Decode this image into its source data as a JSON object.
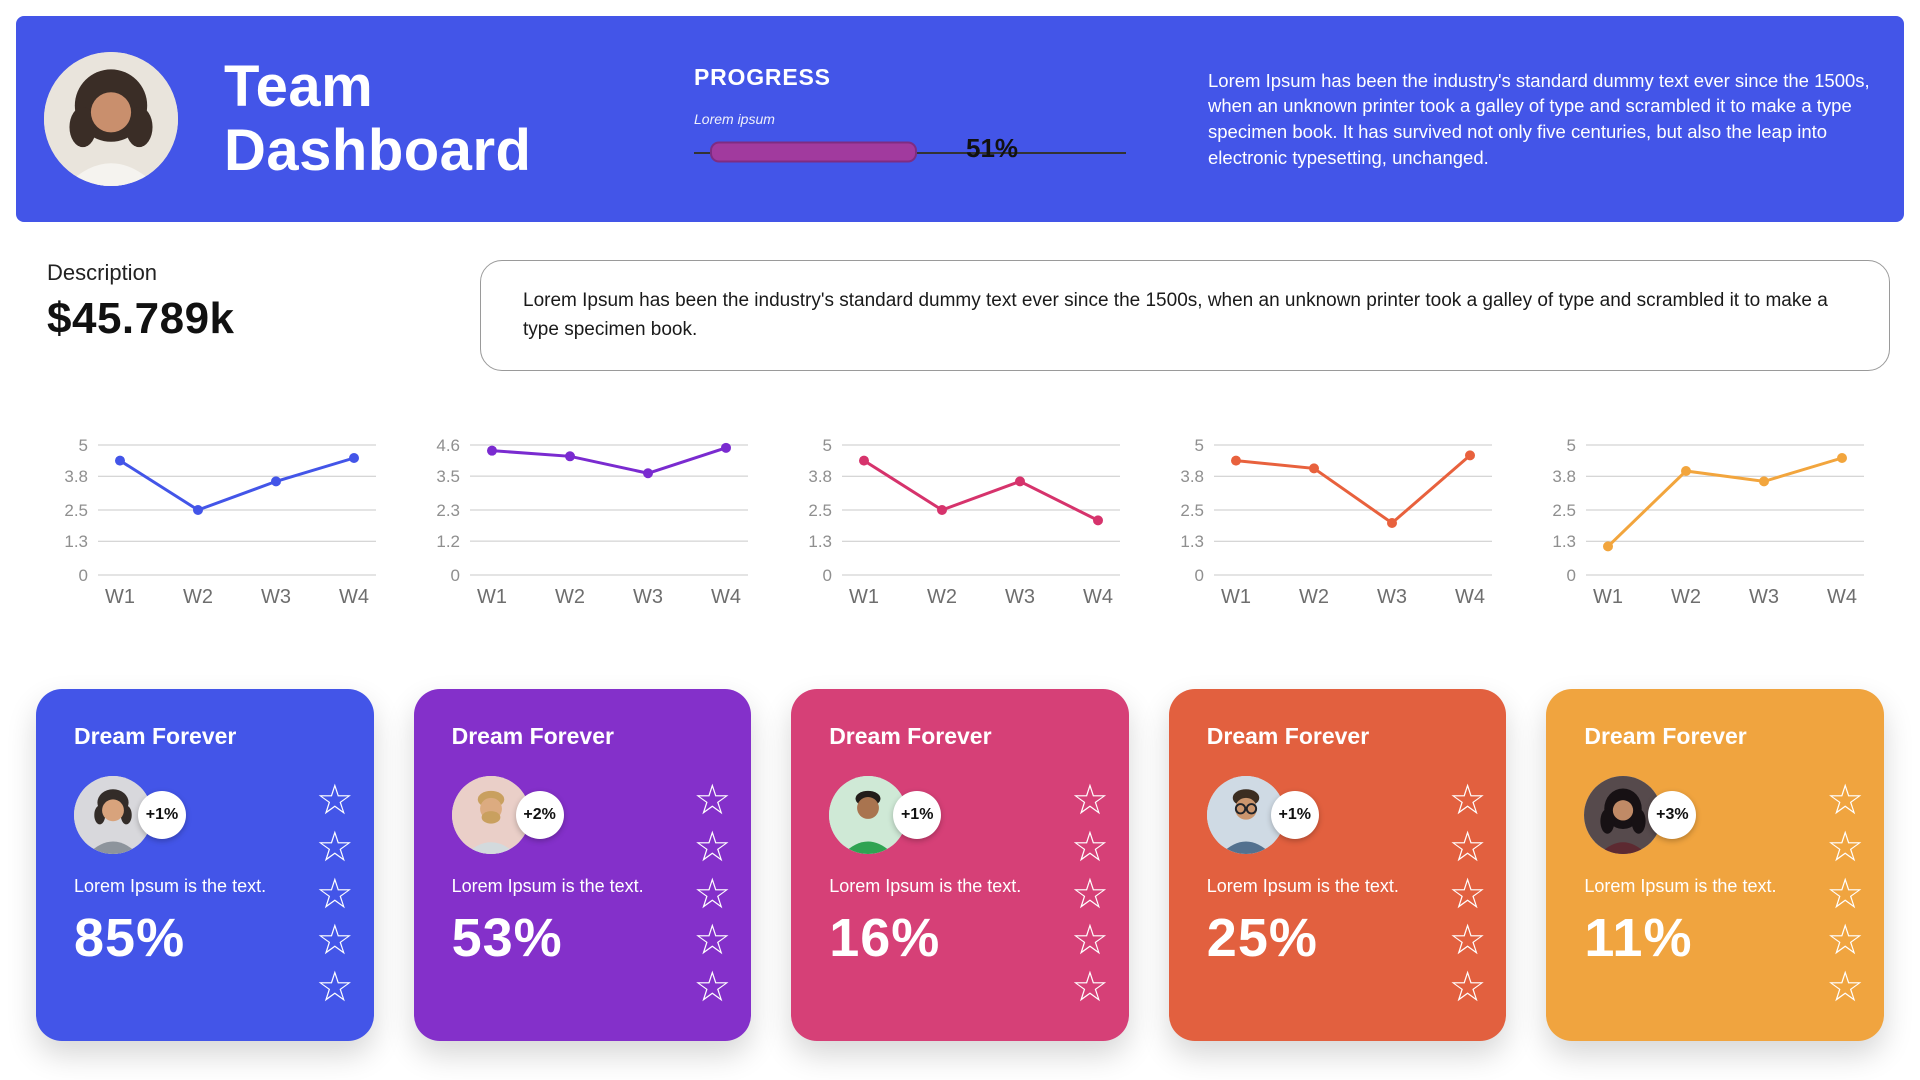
{
  "colors": {
    "header_bg": "#4355e8",
    "progress_fill": "#a13a9e"
  },
  "icons": {
    "star": "☆"
  },
  "header": {
    "title": "Team Dashboard",
    "progress": {
      "label": "PROGRESS",
      "sublabel": "Lorem ipsum",
      "value": "51%",
      "percent": 51
    },
    "paragraph": "Lorem Ipsum has been the industry's standard dummy text ever since the 1500s, when an unknown printer took a galley of type and scrambled it to make a type specimen book. It has survived not only five centuries, but also the leap into electronic typesetting, unchanged."
  },
  "description": {
    "label": "Description",
    "amount": "$45.789k",
    "note": "Lorem Ipsum has been the industry's standard dummy text ever since the 1500s, when an unknown printer took a galley of type and scrambled it to make a type specimen book."
  },
  "chart_data": [
    {
      "type": "line",
      "categories": [
        "W1",
        "W2",
        "W3",
        "W4"
      ],
      "values": [
        4.4,
        2.5,
        3.6,
        4.5
      ],
      "yticks": [
        5,
        3.8,
        2.5,
        1.3,
        0
      ],
      "ylim": [
        0,
        5
      ],
      "grid": true,
      "legend": "none",
      "color": "#4355e8"
    },
    {
      "type": "line",
      "categories": [
        "W1",
        "W2",
        "W3",
        "W4"
      ],
      "values": [
        4.4,
        4.2,
        3.6,
        4.5
      ],
      "yticks": [
        4.6,
        3.5,
        2.3,
        1.2,
        0
      ],
      "ylim": [
        0,
        4.6
      ],
      "grid": true,
      "legend": "none",
      "color": "#7a2bd0"
    },
    {
      "type": "line",
      "categories": [
        "W1",
        "W2",
        "W3",
        "W4"
      ],
      "values": [
        4.4,
        2.5,
        3.6,
        2.1
      ],
      "yticks": [
        5,
        3.8,
        2.5,
        1.3,
        0
      ],
      "ylim": [
        0,
        5
      ],
      "grid": true,
      "legend": "none",
      "color": "#d6336c"
    },
    {
      "type": "line",
      "categories": [
        "W1",
        "W2",
        "W3",
        "W4"
      ],
      "values": [
        4.4,
        4.1,
        2.0,
        4.6
      ],
      "yticks": [
        5,
        3.8,
        2.5,
        1.3,
        0
      ],
      "ylim": [
        0,
        5
      ],
      "grid": true,
      "legend": "none",
      "color": "#e8613d"
    },
    {
      "type": "line",
      "categories": [
        "W1",
        "W2",
        "W3",
        "W4"
      ],
      "values": [
        1.1,
        4.0,
        3.6,
        4.5
      ],
      "yticks": [
        5,
        3.8,
        2.5,
        1.3,
        0
      ],
      "ylim": [
        0,
        5
      ],
      "grid": true,
      "legend": "none",
      "color": "#f2a53d"
    }
  ],
  "cards": [
    {
      "title": "Dream Forever",
      "badge": "+1%",
      "text": "Lorem Ipsum is the text.",
      "value": "85%",
      "color": "#4355e8",
      "stars": 5
    },
    {
      "title": "Dream Forever",
      "badge": "+2%",
      "text": "Lorem Ipsum is the text.",
      "value": "53%",
      "color": "#8430ca",
      "stars": 5
    },
    {
      "title": "Dream Forever",
      "badge": "+1%",
      "text": "Lorem Ipsum is the text.",
      "value": "16%",
      "color": "#d64077",
      "stars": 5
    },
    {
      "title": "Dream Forever",
      "badge": "+1%",
      "text": "Lorem Ipsum is the text.",
      "value": "25%",
      "color": "#e2603f",
      "stars": 5
    },
    {
      "title": "Dream Forever",
      "badge": "+3%",
      "text": "Lorem Ipsum is the text.",
      "value": "11%",
      "color": "#f0a43f",
      "stars": 5
    }
  ]
}
